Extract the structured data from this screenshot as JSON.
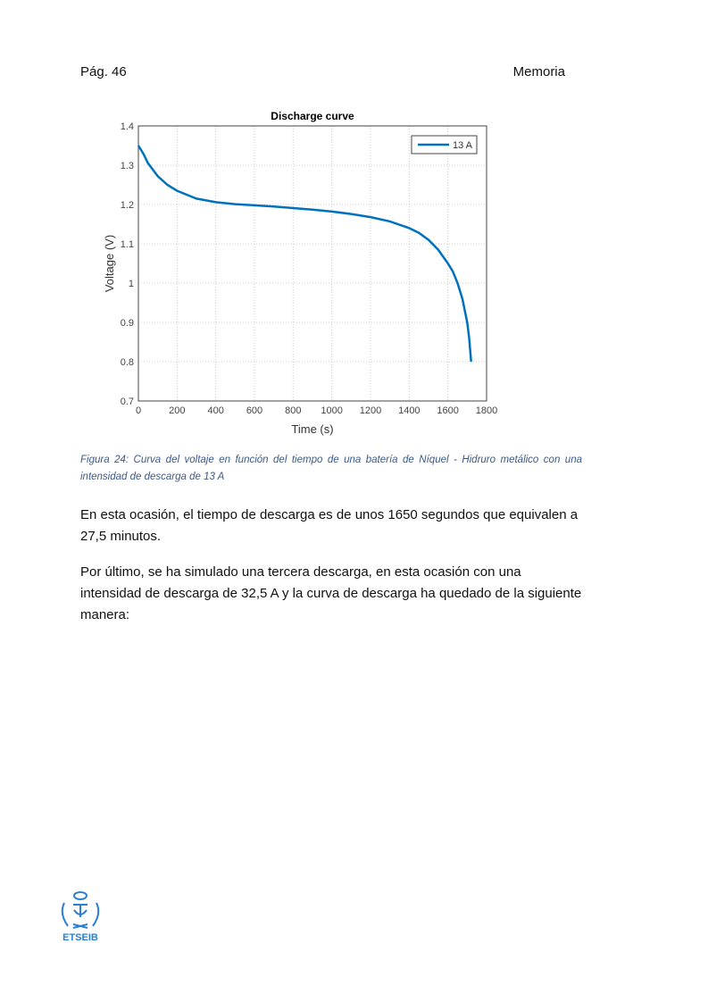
{
  "header": {
    "page": "Pág. 46",
    "section": "Memoria"
  },
  "figure": {
    "caption": "Figura 24: Curva del voltaje en función del tiempo de una batería de Níquel - Hidruro metálico con una intensidad de descarga de 13 A"
  },
  "chart_data": {
    "type": "line",
    "title": "Discharge curve",
    "xlabel": "Time (s)",
    "ylabel": "Voltage (V)",
    "xlim": [
      0,
      1800
    ],
    "ylim": [
      0.7,
      1.4
    ],
    "xticks": [
      "0",
      "200",
      "400",
      "600",
      "800",
      "1000",
      "1200",
      "1400",
      "1600",
      "1800"
    ],
    "yticks": [
      "0.7",
      "0.8",
      "0.9",
      "1",
      "1.1",
      "1.2",
      "1.3",
      "1.4"
    ],
    "grid": true,
    "legend_position": "top-right",
    "series": [
      {
        "name": "13 A",
        "color": "#0072bd",
        "x": [
          0,
          25,
          50,
          100,
          150,
          200,
          300,
          400,
          500,
          600,
          700,
          800,
          900,
          1000,
          1100,
          1200,
          1300,
          1400,
          1450,
          1500,
          1550,
          1600,
          1625,
          1650,
          1675,
          1700,
          1710,
          1720
        ],
        "y": [
          1.35,
          1.33,
          1.305,
          1.272,
          1.25,
          1.235,
          1.215,
          1.206,
          1.201,
          1.198,
          1.195,
          1.191,
          1.187,
          1.182,
          1.176,
          1.168,
          1.157,
          1.14,
          1.128,
          1.11,
          1.085,
          1.05,
          1.03,
          1.0,
          0.96,
          0.9,
          0.86,
          0.8
        ]
      }
    ]
  },
  "body": {
    "p1": "En esta ocasión, el tiempo de descarga es de unos 1650 segundos que equivalen a 27,5 minutos.",
    "p2": "Por último, se ha simulado una tercera descarga, en esta ocasión con una intensidad de descarga de 32,5 A y la curva de descarga ha quedado de la siguiente manera:"
  },
  "footer": {
    "logo_text": "ETSEIB"
  }
}
